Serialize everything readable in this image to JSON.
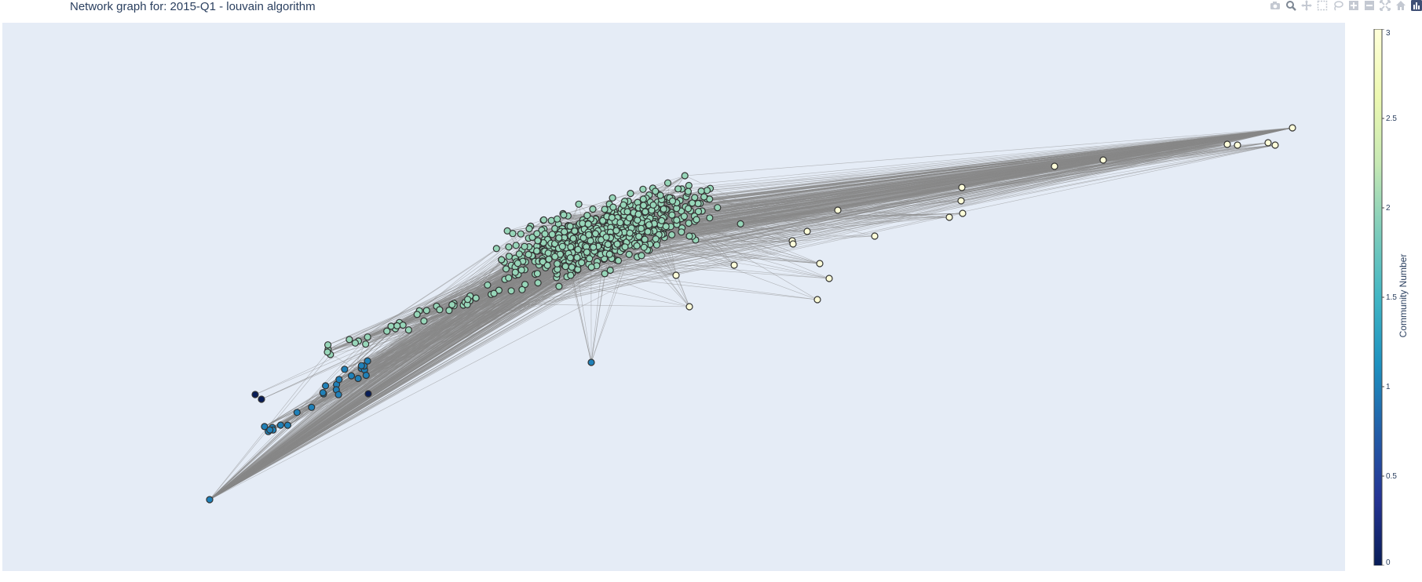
{
  "title": "Network graph for: 2015-Q1 - louvain algorithm",
  "modebar": {
    "icons": [
      "camera-icon",
      "zoom-icon",
      "pan-icon",
      "box-select-icon",
      "lasso-icon",
      "zoom-in-icon",
      "zoom-out-icon",
      "autoscale-icon",
      "reset-axes-icon",
      "plotly-logo-icon"
    ]
  },
  "chart_data": {
    "type": "scatter",
    "subtype": "network-graph",
    "title": "Network graph for: 2015-Q1 - louvain algorithm",
    "xlabel": "",
    "ylabel": "",
    "grid": false,
    "axes_visible": false,
    "edge_color": "#888888",
    "node_outline_color": "#333333",
    "background_color": "#e5ecf6",
    "colorscale": "YlGnBu",
    "colorscale_stops": [
      "#081d58",
      "#253494",
      "#225ea8",
      "#1d91c0",
      "#41b6c4",
      "#7fcdbb",
      "#c7e9b4",
      "#edf8b1",
      "#ffffd9"
    ],
    "colorbar": {
      "title": "Community Number",
      "range": [
        0,
        3
      ],
      "ticks": [
        0,
        0.5,
        1,
        1.5,
        2,
        2.5,
        3
      ],
      "tick_labels": [
        "0",
        "0.5",
        "1",
        "1.5",
        "2",
        "2.5",
        "3"
      ]
    },
    "communities": [
      {
        "community": 0,
        "approx_node_count": 3
      },
      {
        "community": 1,
        "approx_node_count": 25
      },
      {
        "community": 2,
        "approx_node_count": 620
      },
      {
        "community": 3,
        "approx_node_count": 22
      }
    ]
  }
}
